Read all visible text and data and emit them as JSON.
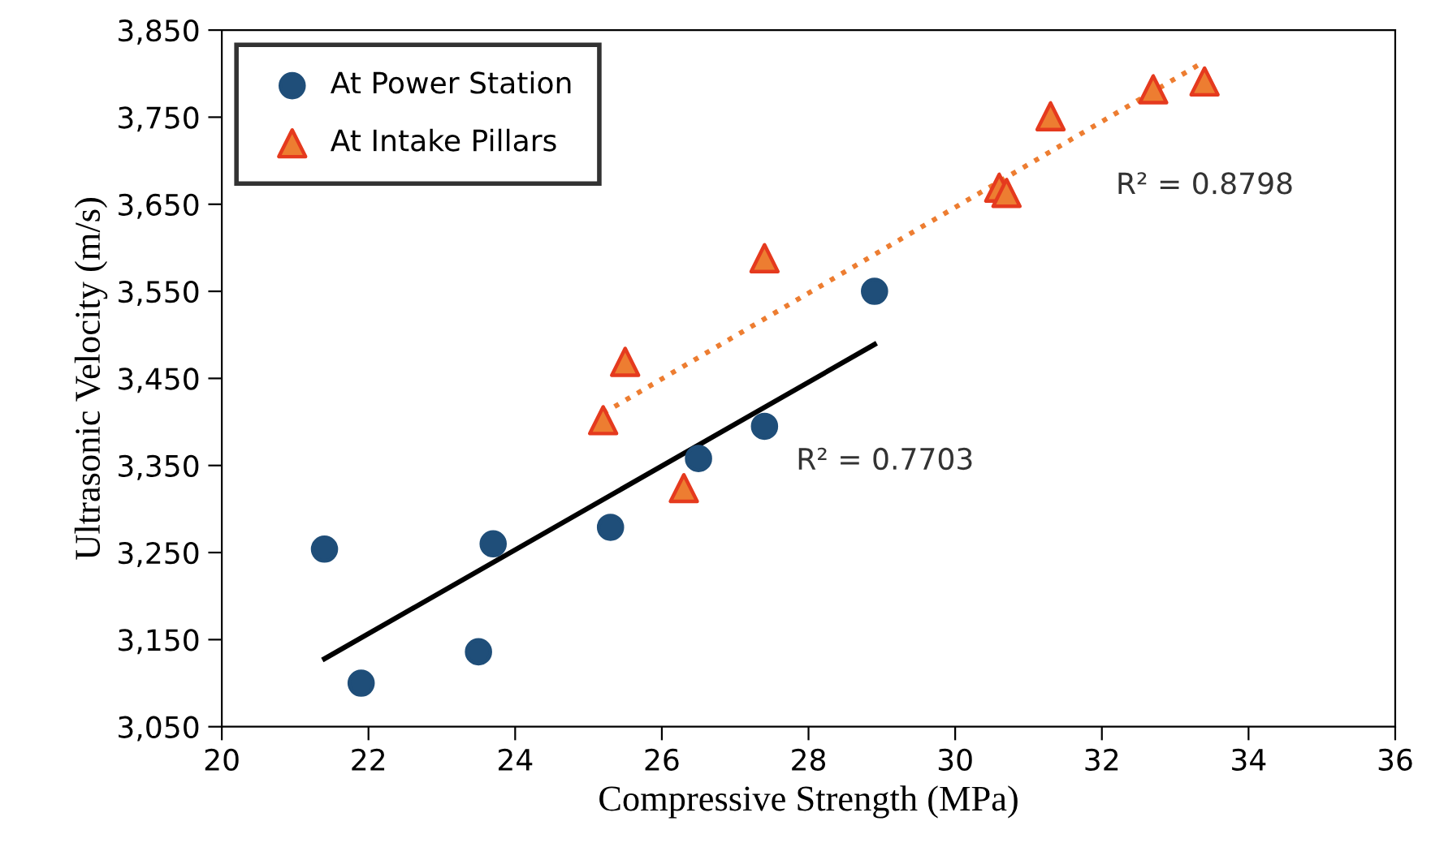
{
  "chart_data": {
    "type": "scatter",
    "xlabel": "Compressive Strength (MPa)",
    "ylabel": "Ultrasonic Velocity (m/s)",
    "xlim": [
      20,
      36
    ],
    "xticks": [
      20,
      22,
      24,
      26,
      28,
      30,
      32,
      34,
      36
    ],
    "ylim": [
      3050,
      3850
    ],
    "yticks": [
      {
        "value": 3050,
        "label": "3,050"
      },
      {
        "value": 3150,
        "label": "3,150"
      },
      {
        "value": 3250,
        "label": "3,250"
      },
      {
        "value": 3350,
        "label": "3,350"
      },
      {
        "value": 3450,
        "label": "3,450"
      },
      {
        "value": 3550,
        "label": "3,550"
      },
      {
        "value": 3650,
        "label": "3,650"
      },
      {
        "value": 3750,
        "label": "3,750"
      },
      {
        "value": 3850,
        "label": "3,850"
      }
    ],
    "grid": false,
    "legend": "top left",
    "series": [
      {
        "name": "At Power Station",
        "marker": "circle",
        "color": "#1f4e79",
        "x": [
          21.4,
          21.9,
          23.5,
          23.7,
          25.3,
          26.5,
          27.4,
          28.9
        ],
        "values": [
          3254,
          3100,
          3136,
          3260,
          3279,
          3358,
          3395,
          3550
        ]
      },
      {
        "name": "At Intake Pillars",
        "marker": "triangle",
        "color": "#ed7d31",
        "x": [
          25.2,
          25.5,
          26.3,
          27.4,
          30.6,
          30.7,
          31.3,
          32.7,
          33.4
        ],
        "values": [
          3402,
          3469,
          3324,
          3588,
          3669,
          3663,
          3751,
          3782,
          3791
        ]
      },
      {
        "type": "line",
        "line_style": "solid",
        "marker": "none",
        "color": "#000000",
        "x": [
          21.4,
          28.9
        ],
        "values": [
          3128,
          3489
        ]
      },
      {
        "type": "line",
        "line_style": "dotted",
        "marker": "none",
        "color": "#ed7d31",
        "x": [
          25.2,
          33.4
        ],
        "values": [
          3410,
          3814
        ]
      }
    ],
    "annotations": [
      "R² = 0.7703",
      "R² = 0.8798"
    ]
  }
}
